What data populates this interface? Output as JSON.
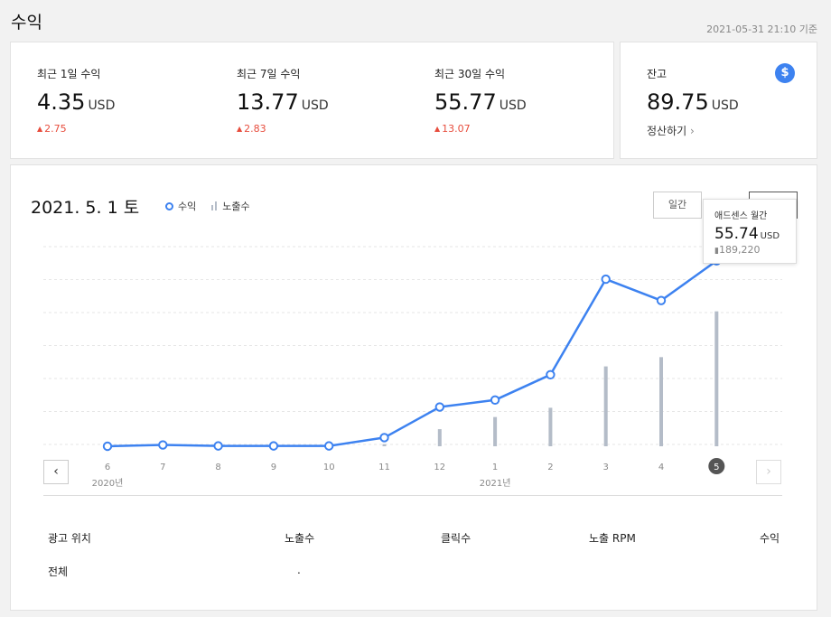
{
  "page": {
    "title": "수익",
    "timestamp": "2021-05-31 21:10 기준"
  },
  "stats": [
    {
      "label": "최근 1일 수익",
      "value": "4.35",
      "unit": "USD",
      "delta": "2.75"
    },
    {
      "label": "최근 7일 수익",
      "value": "13.77",
      "unit": "USD",
      "delta": "2.83"
    },
    {
      "label": "최근 30일 수익",
      "value": "55.77",
      "unit": "USD",
      "delta": "13.07"
    }
  ],
  "balance": {
    "label": "잔고",
    "value": "89.75",
    "unit": "USD",
    "settle_link": "정산하기",
    "icon": "dollar-icon"
  },
  "chart_header": {
    "date": "2021. 5. 1 토",
    "legend_revenue": "수익",
    "legend_impressions": "노출수"
  },
  "tabs": {
    "daily": "일간",
    "monthly": ""
  },
  "tooltip": {
    "title": "애드센스 월간",
    "value": "55.74",
    "unit": "USD",
    "impressions": "189,220"
  },
  "chart_data": {
    "type": "line",
    "categories": [
      "6",
      "7",
      "8",
      "9",
      "10",
      "11",
      "12",
      "1",
      "2",
      "3",
      "4",
      "5"
    ],
    "year_labels": [
      {
        "at": "6",
        "text": "2020년"
      },
      {
        "at": "1",
        "text": "2021년"
      }
    ],
    "series": [
      {
        "name": "수익",
        "type": "line",
        "color": "#3d82f0",
        "values": [
          0.0,
          0.4,
          0.1,
          0.1,
          0.1,
          2.6,
          11.8,
          13.9,
          21.5,
          50.2,
          43.8,
          55.74
        ]
      },
      {
        "name": "노출수",
        "type": "bar",
        "color": "#b4bcc8",
        "values": [
          0,
          0,
          0,
          0,
          0,
          3000,
          24000,
          41000,
          54000,
          112000,
          125000,
          189220
        ]
      }
    ],
    "ylim": [
      0,
      60
    ],
    "y2lim": [
      0,
      280000
    ],
    "highlighted_category": "5",
    "grid": true,
    "legend": "top-left"
  },
  "table": {
    "headers": [
      "광고 위치",
      "노출수",
      "클릭수",
      "노출 RPM",
      "수익"
    ],
    "rows": [
      {
        "position": "전체",
        "impressions": ".",
        "clicks": "",
        "rpm": "",
        "revenue": ""
      }
    ]
  },
  "nav": {
    "prev": "‹",
    "next": "›"
  }
}
